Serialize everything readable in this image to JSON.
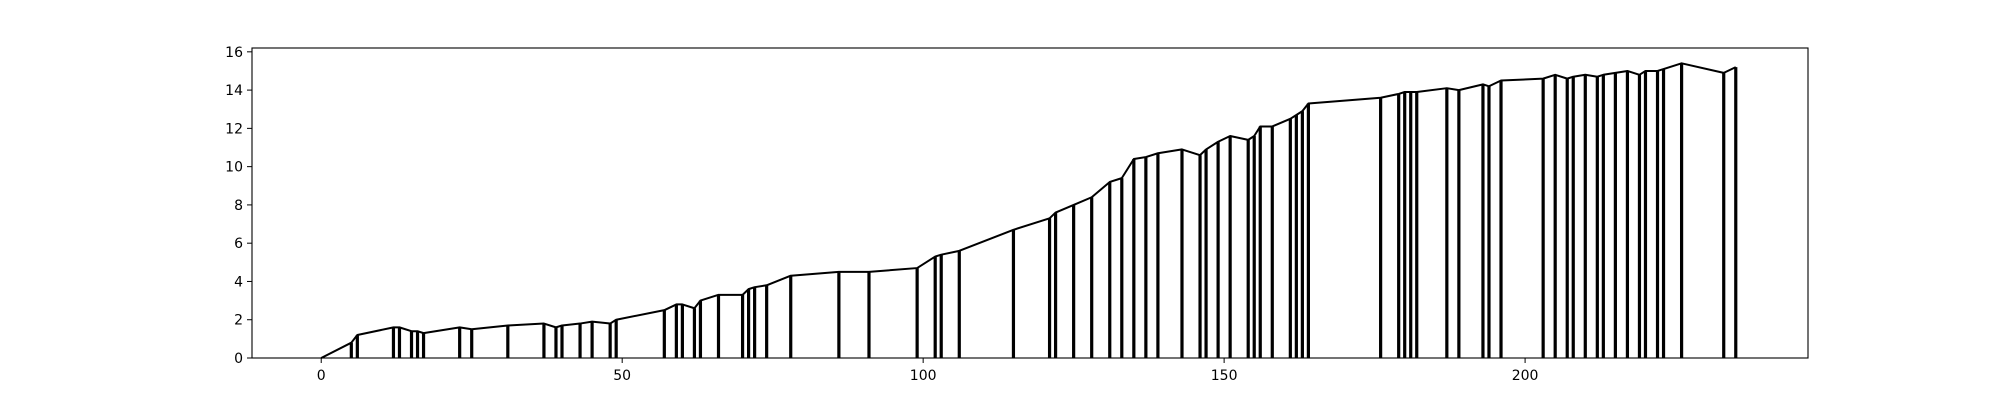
{
  "chart_data": {
    "type": "line",
    "title": "",
    "xlabel": "",
    "ylabel": "",
    "xlim": [
      -11.5,
      247
    ],
    "ylim": [
      0,
      16.2
    ],
    "x_ticks": [
      0,
      50,
      100,
      150,
      200
    ],
    "y_ticks": [
      0,
      2,
      4,
      6,
      8,
      10,
      12,
      14,
      16
    ],
    "x_tick_labels": [
      "0",
      "50",
      "100",
      "150",
      "200"
    ],
    "y_tick_labels": [
      "0",
      "2",
      "4",
      "6",
      "8",
      "10",
      "12",
      "14",
      "16"
    ],
    "grid": false,
    "legend": "none",
    "line_color": "#000000",
    "series": [
      {
        "x": [
          0,
          5,
          6,
          12,
          13,
          15,
          16,
          17,
          23,
          25,
          31,
          37,
          39,
          40,
          43,
          45,
          48,
          49,
          57,
          59,
          60,
          62,
          63,
          66,
          70,
          71,
          72,
          74,
          78,
          86,
          91,
          99,
          102,
          103,
          106,
          115,
          121,
          122,
          125,
          128,
          131,
          133,
          135,
          137,
          139,
          143,
          146,
          147,
          149,
          151,
          154,
          155,
          156,
          158,
          161,
          162,
          163,
          164,
          176,
          179,
          180,
          181,
          182,
          187,
          189,
          193,
          194,
          196,
          203,
          205,
          207,
          208,
          210,
          212,
          213,
          215,
          217,
          219,
          220,
          222,
          223,
          226,
          233,
          235
        ],
        "y": [
          0,
          0.8,
          1.2,
          1.6,
          1.6,
          1.4,
          1.4,
          1.3,
          1.6,
          1.5,
          1.7,
          1.8,
          1.6,
          1.7,
          1.8,
          1.9,
          1.8,
          2.0,
          2.5,
          2.8,
          2.8,
          2.6,
          3.0,
          3.3,
          3.3,
          3.6,
          3.7,
          3.8,
          4.3,
          4.5,
          4.5,
          4.7,
          5.3,
          5.4,
          5.6,
          6.7,
          7.3,
          7.6,
          8.0,
          8.4,
          9.2,
          9.4,
          10.4,
          10.5,
          10.7,
          10.9,
          10.6,
          10.9,
          11.3,
          11.6,
          11.4,
          11.6,
          12.1,
          12.1,
          12.5,
          12.7,
          12.9,
          13.3,
          13.6,
          13.8,
          13.9,
          13.9,
          13.9,
          14.1,
          14.0,
          14.3,
          14.2,
          14.5,
          14.6,
          14.8,
          14.6,
          14.7,
          14.8,
          14.7,
          14.8,
          14.9,
          15.0,
          14.8,
          15.0,
          15.0,
          15.1,
          15.4,
          14.9,
          15.2
        ]
      }
    ]
  }
}
